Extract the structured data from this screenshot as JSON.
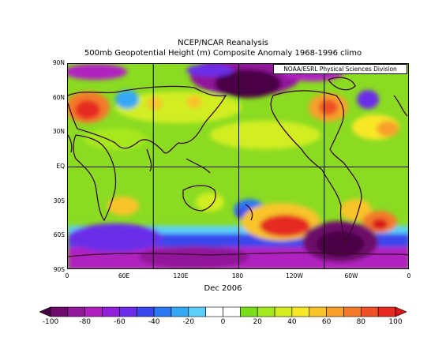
{
  "title_line1": "NCEP/NCAR Reanalysis",
  "title_line2": "500mb Geopotential Height (m) Composite Anomaly 1968-1996 climo",
  "credit": "NOAA/ESRL Physical Sciences Division",
  "x_caption": "Dec 2006",
  "lat_labels": [
    "90N",
    "60N",
    "30N",
    "EQ",
    "30S",
    "60S",
    "90S"
  ],
  "lon_labels": [
    "0",
    "60E",
    "120E",
    "180",
    "120W",
    "60W",
    "0"
  ],
  "colorbar": {
    "labels": [
      "-100",
      "-80",
      "-60",
      "-40",
      "-20",
      "0",
      "20",
      "40",
      "60",
      "80",
      "100"
    ],
    "colors": [
      "#4a0044",
      "#6d0a6a",
      "#92189a",
      "#b020c0",
      "#9020d8",
      "#6a2ee8",
      "#3a46ec",
      "#2c78f0",
      "#36a8f4",
      "#5ccff8",
      "#ffffff",
      "#ffffff",
      "#7ade1c",
      "#a6e81e",
      "#d2ee22",
      "#f8e828",
      "#f8c42a",
      "#f8a02c",
      "#f47a2a",
      "#ee5028",
      "#e62a22",
      "#d8141a"
    ]
  },
  "colors": {
    "background": "#ffffff",
    "land_outline": "#3a0a2a",
    "grid": "#000000",
    "map_base": "#8adb22"
  }
}
